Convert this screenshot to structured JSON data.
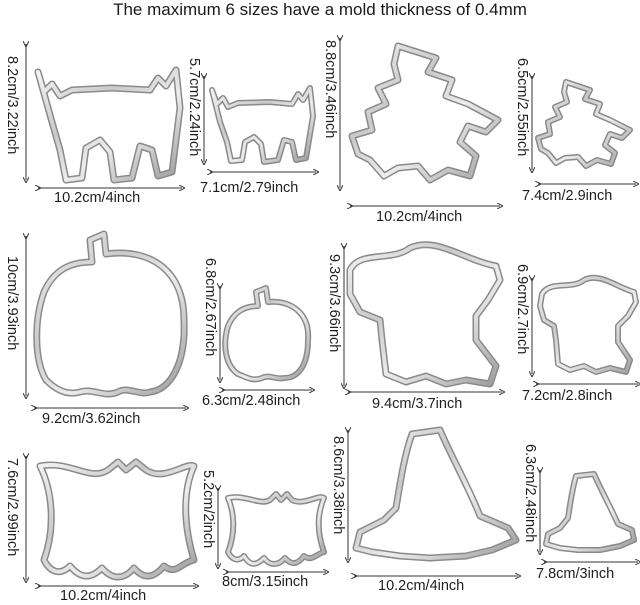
{
  "headline": "The maximum 6 sizes have a mold thickness of 0.4mm",
  "cutters": [
    {
      "shape": "cat",
      "size": "large",
      "height_label": "8.2cm/3.22inch",
      "width_label": "10.2cm/4inch"
    },
    {
      "shape": "cat",
      "size": "small",
      "height_label": "5.7cm/2.24inch",
      "width_label": "7.1cm/2.79inch"
    },
    {
      "shape": "witch",
      "size": "large",
      "height_label": "8.8cm/3.46inch",
      "width_label": "10.2cm/4inch"
    },
    {
      "shape": "witch",
      "size": "small",
      "height_label": "6.5cm/2.55inch",
      "width_label": "7.4cm/2.9inch"
    },
    {
      "shape": "pumpkin",
      "size": "large",
      "height_label": "10cm/3.93inch",
      "width_label": "9.2cm/3.62inch"
    },
    {
      "shape": "pumpkin",
      "size": "small",
      "height_label": "6.8cm/2.67inch",
      "width_label": "6.3cm/2.48inch"
    },
    {
      "shape": "ghost",
      "size": "large",
      "height_label": "9.3cm/3.66inch",
      "width_label": "9.4cm/3.7inch"
    },
    {
      "shape": "ghost",
      "size": "small",
      "height_label": "6.9cm/2.7inch",
      "width_label": "7.2cm/2.8inch"
    },
    {
      "shape": "bat",
      "size": "large",
      "height_label": "7.6cm/2.99inch",
      "width_label": "10.2cm/4inch"
    },
    {
      "shape": "bat",
      "size": "small",
      "height_label": "5.2cm/2inch",
      "width_label": "8cm/3.15inch"
    },
    {
      "shape": "hat",
      "size": "large",
      "height_label": "8.6cm/3.38inch",
      "width_label": "10.2cm/4inch"
    },
    {
      "shape": "hat",
      "size": "small",
      "height_label": "6.3cm/2.48inch",
      "width_label": "7.8cm/3inch"
    }
  ]
}
